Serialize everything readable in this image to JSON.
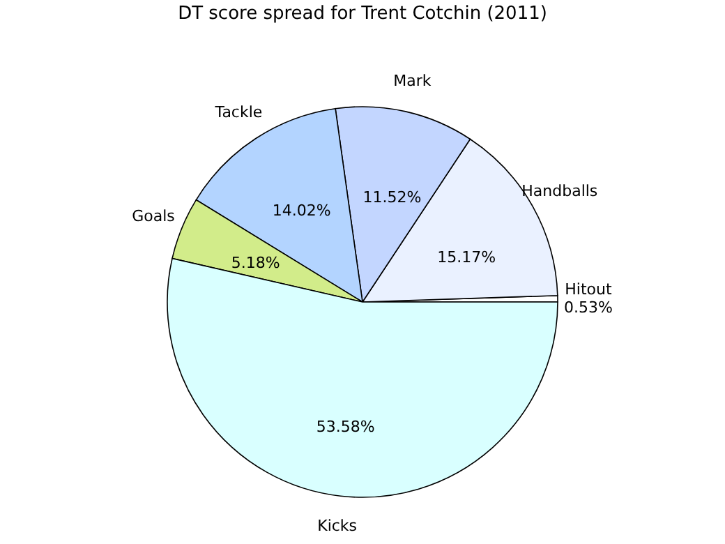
{
  "chart_data": {
    "type": "pie",
    "title": "DT score spread for Trent Cotchin (2011)",
    "categories": [
      "Hitout",
      "Handballs",
      "Mark",
      "Tackle",
      "Goals",
      "Kicks"
    ],
    "values": [
      0.53,
      15.17,
      11.52,
      14.02,
      5.18,
      53.58
    ],
    "value_labels": [
      "0.53%",
      "15.17%",
      "11.52%",
      "14.02%",
      "5.18%",
      "53.58%"
    ],
    "colors": [
      "#ffffff",
      "#eaf1ff",
      "#c3d6ff",
      "#b3d4ff",
      "#d2ec8a",
      "#d9ffff"
    ],
    "legend": false
  }
}
